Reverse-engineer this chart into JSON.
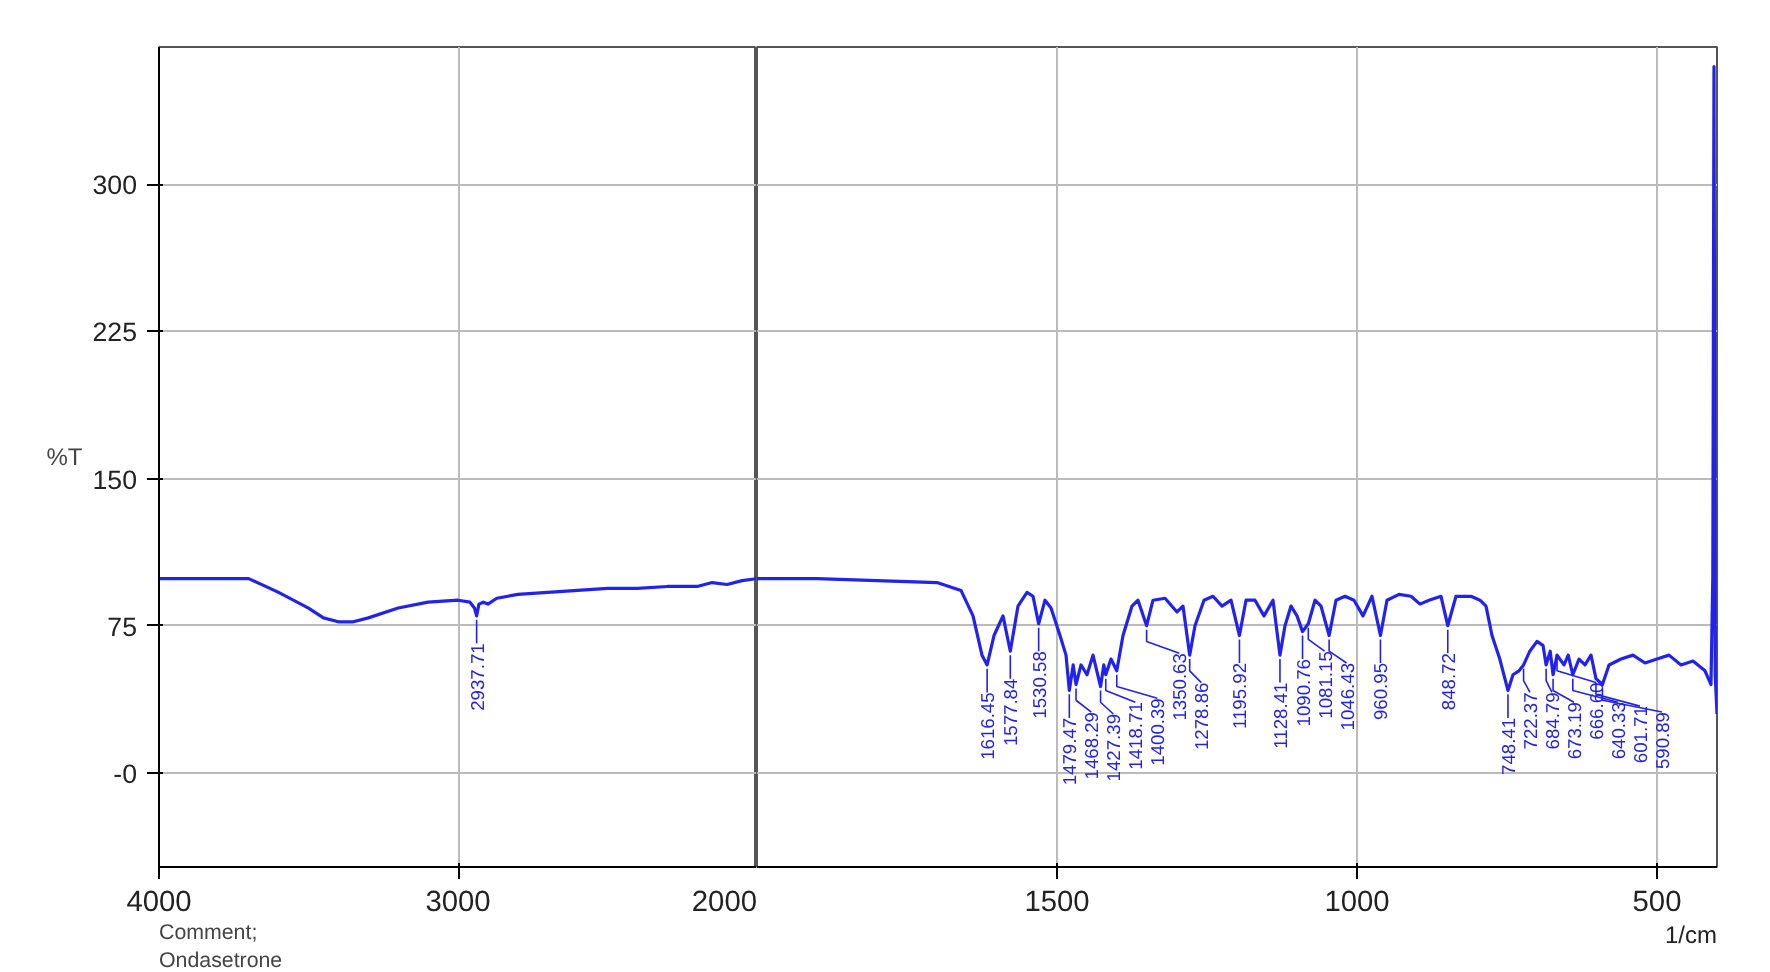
{
  "chart_data": [
    {
      "type": "line",
      "ylabel": "%T",
      "xlim": [
        4000,
        2000
      ],
      "xticks": [
        4000,
        3000,
        2000
      ],
      "ylim": [
        -48,
        370
      ],
      "yticks": [
        {
          "value": 0,
          "label": "-0"
        },
        75,
        150,
        225,
        300
      ],
      "grid": true,
      "tick_labels": "xy",
      "annotations": [
        "Comment;",
        "Ondasetrone",
        {
          "text": "2937.71",
          "x": 2937.71,
          "y": 80
        }
      ],
      "series": [
        {
          "color": "#2222ee",
          "x": [
            4000,
            3900,
            3800,
            3700,
            3600,
            3500,
            3450,
            3400,
            3350,
            3300,
            3200,
            3100,
            3000,
            2960,
            2945,
            2937.71,
            2930,
            2915,
            2900,
            2870,
            2800,
            2700,
            2600,
            2500,
            2400,
            2300,
            2200,
            2150,
            2100,
            2050,
            2000
          ],
          "values": [
            99,
            99,
            99,
            99,
            92,
            84,
            79,
            77,
            77,
            79,
            84,
            87,
            88,
            87,
            84,
            80,
            86,
            87,
            86,
            89,
            91,
            92,
            93,
            94,
            94,
            95,
            95,
            97,
            96,
            98,
            99
          ]
        }
      ]
    },
    {
      "type": "line",
      "xlabel": "1/cm",
      "xlim": [
        2000,
        400
      ],
      "xticks": [
        1500,
        1000,
        500
      ],
      "ylim": [
        -48,
        370
      ],
      "yticks": [
        0,
        75,
        150,
        225,
        300
      ],
      "grid": true,
      "tick_labels": "x",
      "annotations": [
        {
          "text": "1616.45",
          "x": 1616.45,
          "y": 55
        },
        {
          "text": "1577.84",
          "x": 1577.84,
          "y": 62
        },
        {
          "text": "1530.58",
          "x": 1530.58,
          "y": 76
        },
        {
          "text": "1479.47",
          "x": 1479.47,
          "y": 42
        },
        {
          "text": "1468.29",
          "x": 1468.29,
          "y": 45
        },
        {
          "text": "1427.39",
          "x": 1427.39,
          "y": 44
        },
        {
          "text": "1418.71",
          "x": 1418.71,
          "y": 50
        },
        {
          "text": "1400.39",
          "x": 1400.39,
          "y": 52
        },
        {
          "text": "1350.63",
          "x": 1350.63,
          "y": 75
        },
        {
          "text": "1278.86",
          "x": 1278.86,
          "y": 60
        },
        {
          "text": "1195.92",
          "x": 1195.92,
          "y": 70
        },
        {
          "text": "1128.41",
          "x": 1128.41,
          "y": 60
        },
        {
          "text": "1090.76",
          "x": 1090.76,
          "y": 72
        },
        {
          "text": "1081.15",
          "x": 1081.15,
          "y": 76
        },
        {
          "text": "1046.43",
          "x": 1046.43,
          "y": 70
        },
        {
          "text": "960.95",
          "x": 960.95,
          "y": 70
        },
        {
          "text": "848.72",
          "x": 848.72,
          "y": 75
        },
        {
          "text": "748.41",
          "x": 748.41,
          "y": 42
        },
        {
          "text": "722.37",
          "x": 722.37,
          "y": 55
        },
        {
          "text": "684.79",
          "x": 684.79,
          "y": 55
        },
        {
          "text": "673.19",
          "x": 673.19,
          "y": 50
        },
        {
          "text": "666.60",
          "x": 666.6,
          "y": 60
        },
        {
          "text": "640.33",
          "x": 640.33,
          "y": 50
        },
        {
          "text": "601.71",
          "x": 601.71,
          "y": 48
        },
        {
          "text": "590.89",
          "x": 590.89,
          "y": 45
        }
      ],
      "series": [
        {
          "color": "#2222ee",
          "x": [
            2000,
            1900,
            1800,
            1700,
            1660,
            1640,
            1625,
            1616.45,
            1605,
            1590,
            1577.84,
            1565,
            1550,
            1540,
            1530.58,
            1520,
            1510,
            1495,
            1485,
            1479.47,
            1473,
            1468.29,
            1460,
            1450,
            1440,
            1427.39,
            1422,
            1418.71,
            1410,
            1400.39,
            1390,
            1375,
            1365,
            1350.63,
            1340,
            1320,
            1300,
            1290,
            1278.86,
            1270,
            1255,
            1240,
            1225,
            1210,
            1195.92,
            1185,
            1170,
            1155,
            1140,
            1128.41,
            1120,
            1110,
            1100,
            1090.76,
            1081.15,
            1070,
            1060,
            1046.43,
            1035,
            1020,
            1005,
            990,
            975,
            960.95,
            950,
            930,
            910,
            895,
            880,
            860,
            848.72,
            835,
            810,
            795,
            785,
            775,
            762,
            748.41,
            740,
            730,
            722.37,
            712,
            700,
            690,
            684.79,
            678,
            673.19,
            666.6,
            655,
            648,
            640.33,
            630,
            620,
            610,
            601.71,
            590.89,
            580,
            560,
            540,
            520,
            500,
            480,
            460,
            440,
            420,
            410,
            407,
            405,
            403,
            400
          ],
          "values": [
            99,
            99,
            98,
            97,
            93,
            80,
            60,
            55,
            70,
            80,
            62,
            85,
            92,
            90,
            76,
            88,
            84,
            70,
            60,
            42,
            55,
            45,
            55,
            50,
            60,
            44,
            55,
            50,
            58,
            52,
            70,
            85,
            88,
            75,
            88,
            89,
            82,
            85,
            60,
            75,
            88,
            90,
            85,
            88,
            70,
            88,
            88,
            80,
            88,
            60,
            75,
            85,
            80,
            72,
            76,
            88,
            85,
            70,
            88,
            90,
            88,
            80,
            90,
            70,
            88,
            91,
            90,
            86,
            88,
            90,
            75,
            90,
            90,
            88,
            85,
            70,
            58,
            42,
            50,
            52,
            55,
            62,
            67,
            65,
            55,
            62,
            50,
            60,
            55,
            60,
            50,
            58,
            55,
            60,
            48,
            45,
            55,
            58,
            60,
            56,
            58,
            60,
            55,
            57,
            52,
            45,
            100,
            360,
            50,
            30
          ]
        }
      ]
    }
  ]
}
